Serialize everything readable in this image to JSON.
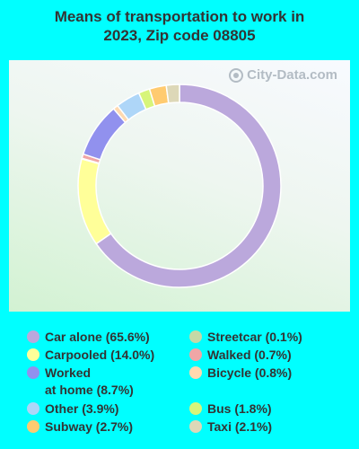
{
  "title_line1": "Means of transportation to work in",
  "title_line2": "2023, Zip code 08805",
  "watermark": "City-Data.com",
  "chart_data": {
    "type": "pie",
    "title": "Means of transportation to work in 2023, Zip code 08805",
    "donut": true,
    "slices": [
      {
        "label": "Car alone",
        "display": "Car alone (65.6%)",
        "value": 65.6,
        "color": "#bba8dc"
      },
      {
        "label": "Carpooled",
        "display": "Carpooled (14.0%)",
        "value": 14.0,
        "color": "#ffff99"
      },
      {
        "label": "Streetcar",
        "display": "Streetcar (0.1%)",
        "value": 0.1,
        "color": "#c4d9a6"
      },
      {
        "label": "Walked",
        "display": "Walked (0.7%)",
        "value": 0.7,
        "color": "#f0a6a6"
      },
      {
        "label": "Worked at home",
        "display_line1": "Worked",
        "display_line2": "at home (8.7%)",
        "value": 8.7,
        "color": "#9191ee"
      },
      {
        "label": "Bicycle",
        "display": "Bicycle (0.8%)",
        "value": 0.8,
        "color": "#ffd9b0"
      },
      {
        "label": "Other",
        "display": "Other (3.9%)",
        "value": 3.9,
        "color": "#aed6f8"
      },
      {
        "label": "Bus",
        "display": "Bus (1.8%)",
        "value": 1.8,
        "color": "#d7f57a"
      },
      {
        "label": "Subway",
        "display": "Subway (2.7%)",
        "value": 2.7,
        "color": "#ffcb70"
      },
      {
        "label": "Taxi",
        "display": "Taxi (2.1%)",
        "value": 2.1,
        "color": "#ddd8b8"
      }
    ],
    "legend_position": "bottom"
  }
}
